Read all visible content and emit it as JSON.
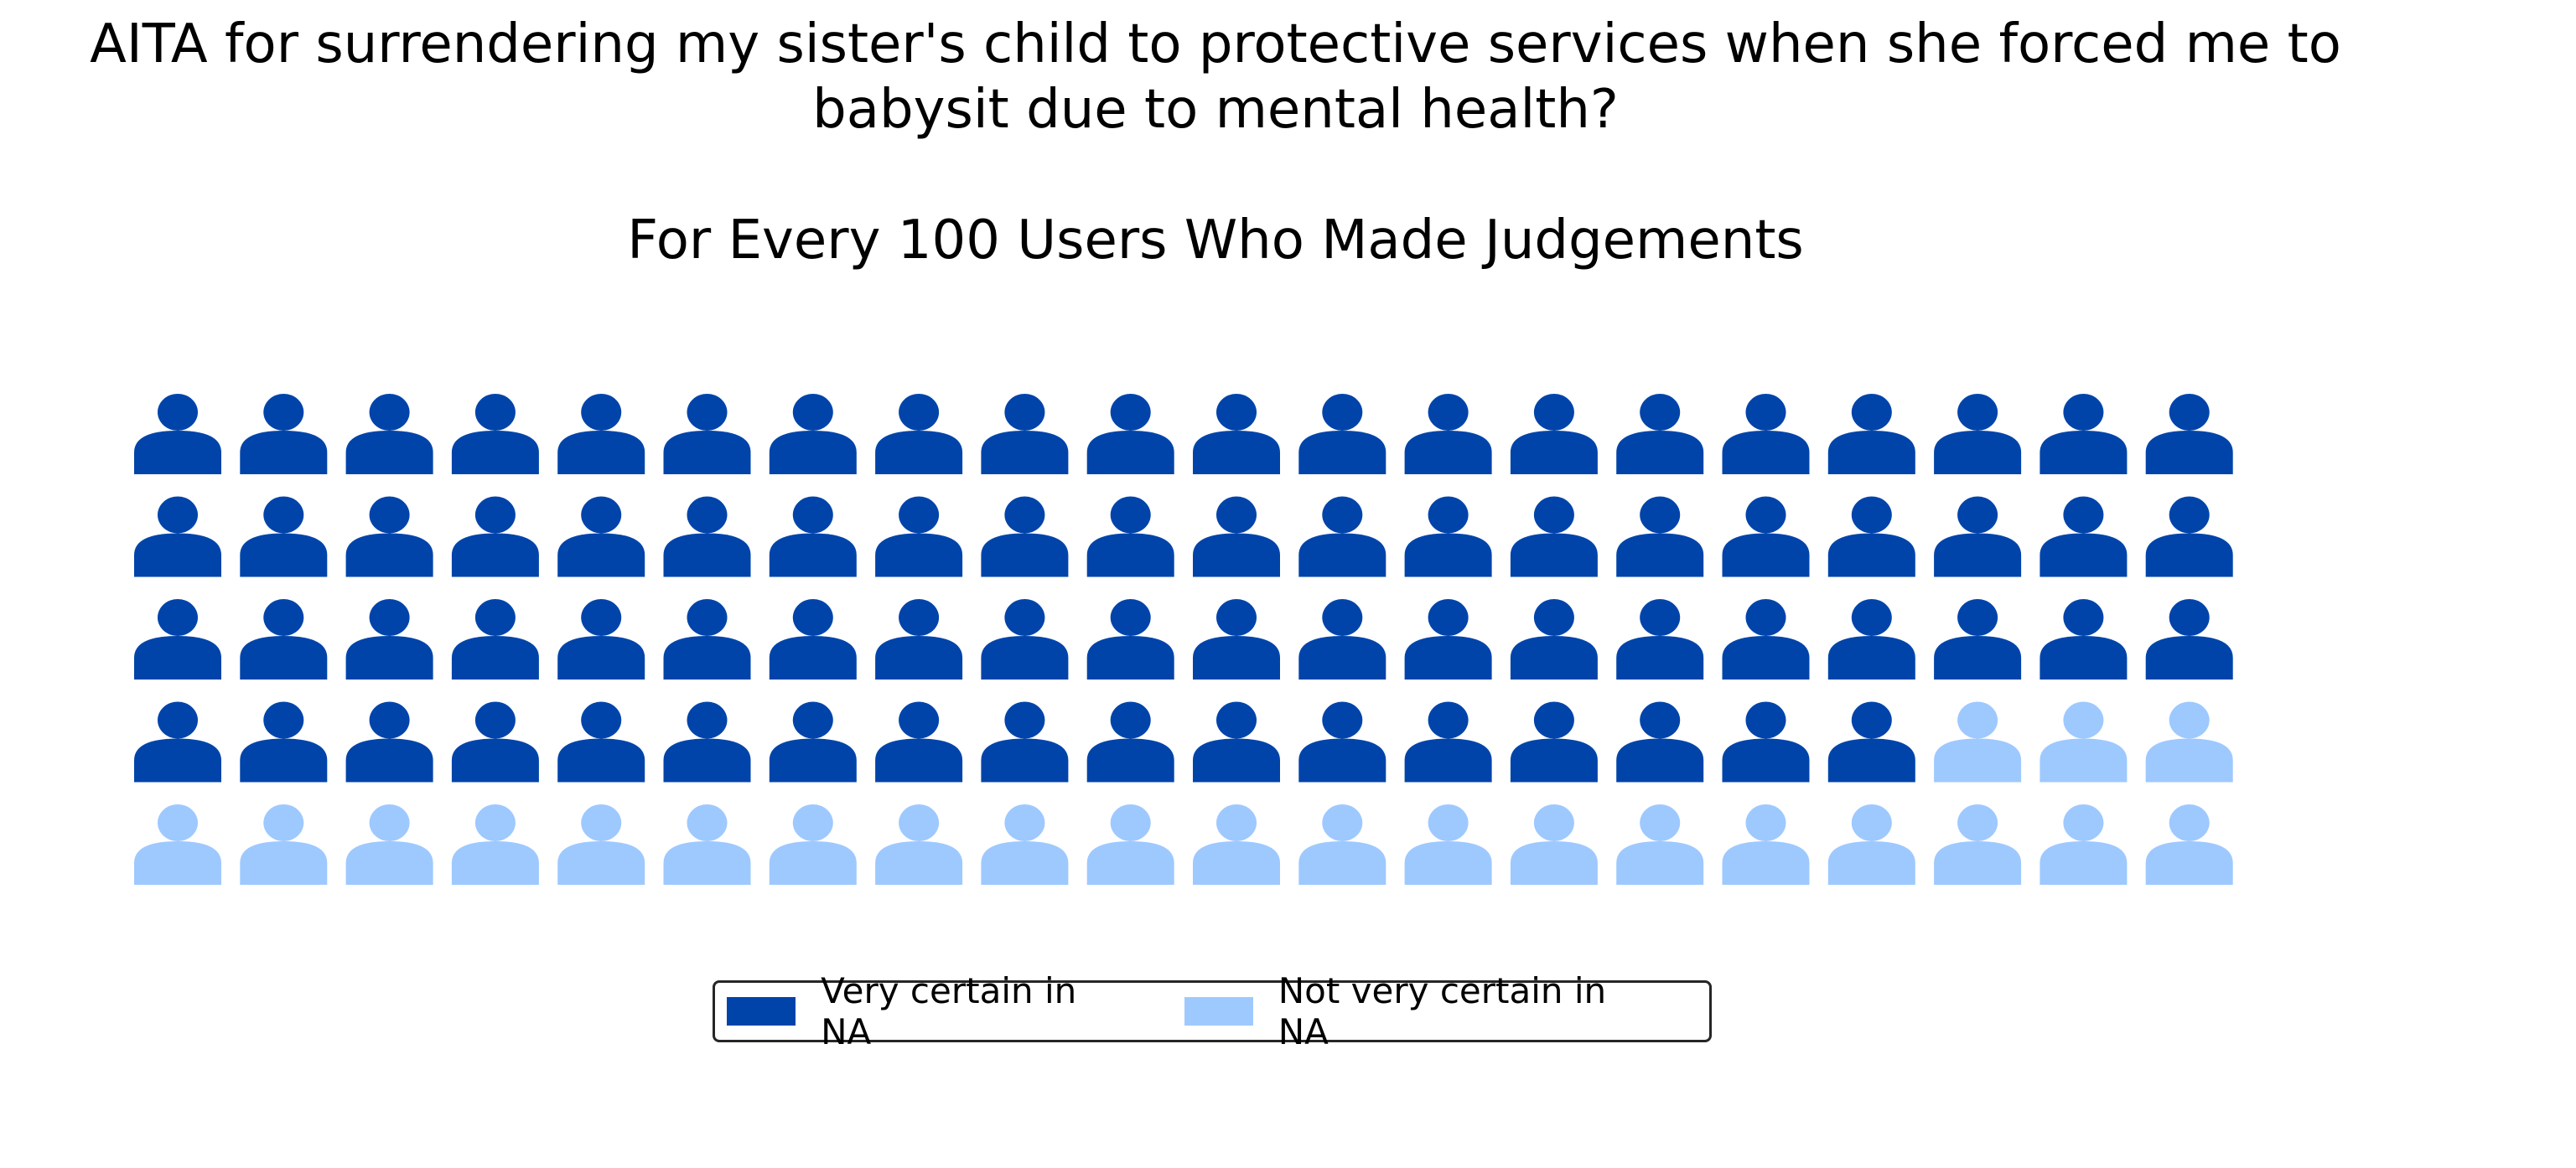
{
  "chart_data": {
    "type": "waffle",
    "title": "AITA for surrendering my sister's child to protective services when she forced me to\nbabysit due to mental health?",
    "subtitle": "For Every 100 Users Who Made Judgements",
    "grid": {
      "rows": 5,
      "columns": 20,
      "fill_order": "row-major"
    },
    "icon": "person-icon",
    "categories": [
      {
        "name": "Very certain in NA",
        "value": 77,
        "color": "#0044aa"
      },
      {
        "name": "Not very certain in NA",
        "value": 23,
        "color": "#9ec9ff"
      }
    ],
    "total": 100,
    "legend_position": "bottom-center"
  }
}
